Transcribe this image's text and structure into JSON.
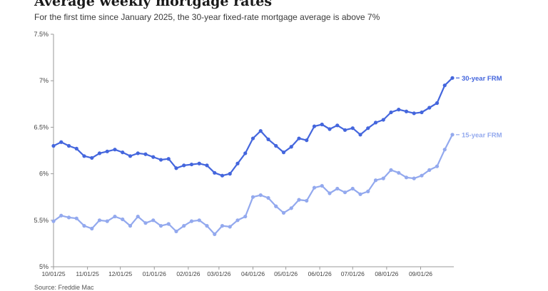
{
  "header": {
    "title": "Average weekly mortgage rates",
    "subtitle": "For the first time since January 2025, the 30-year fixed-rate mortgage average is above 7%"
  },
  "footer": {
    "source": "Source: Freddie Mac"
  },
  "colors": {
    "series_30": "#4466dd",
    "series_15": "#93a9ee",
    "axis": "#9a9a9a",
    "tick_text": "#444444"
  },
  "chart_data": {
    "type": "line",
    "title": "Average weekly mortgage rates",
    "subtitle": "For the first time since January 2025, the 30-year fixed-rate mortgage average is above 7%",
    "xlabel": "",
    "ylabel": "",
    "ylim": [
      5,
      7.5
    ],
    "yticks": [
      5,
      5.5,
      6,
      6.5,
      7,
      7.5
    ],
    "ytick_labels": [
      "5%",
      "5.5%",
      "6%",
      "6.5%",
      "7%",
      "7.5%"
    ],
    "xtick_labels": [
      "10/01/25",
      "11/01/25",
      "12/01/25",
      "01/01/26",
      "02/01/26",
      "03/01/26",
      "04/01/26",
      "05/01/26",
      "06/01/26",
      "07/01/26",
      "08/01/26",
      "09/01/26"
    ],
    "xtick_weeks": [
      0,
      4.43,
      8.71,
      13.14,
      17.57,
      21.57,
      26,
      30.29,
      34.71,
      39,
      43.43,
      47.86
    ],
    "grid": false,
    "legend": "direct labels at line ends",
    "series": [
      {
        "name": "30-year FRM",
        "values": [
          6.3,
          6.34,
          6.3,
          6.27,
          6.19,
          6.17,
          6.22,
          6.24,
          6.26,
          6.23,
          6.19,
          6.22,
          6.21,
          6.18,
          6.15,
          6.16,
          6.06,
          6.09,
          6.1,
          6.11,
          6.09,
          6.01,
          5.98,
          6.0,
          6.11,
          6.22,
          6.38,
          6.46,
          6.37,
          6.3,
          6.23,
          6.29,
          6.38,
          6.36,
          6.51,
          6.53,
          6.48,
          6.52,
          6.47,
          6.49,
          6.42,
          6.49,
          6.55,
          6.58,
          6.66,
          6.69,
          6.67,
          6.65,
          6.66,
          6.71,
          6.76,
          6.95,
          7.03
        ]
      },
      {
        "name": "15-year FRM",
        "values": [
          5.49,
          5.55,
          5.53,
          5.52,
          5.44,
          5.41,
          5.5,
          5.49,
          5.54,
          5.51,
          5.44,
          5.54,
          5.47,
          5.5,
          5.44,
          5.46,
          5.38,
          5.44,
          5.49,
          5.5,
          5.44,
          5.35,
          5.44,
          5.43,
          5.5,
          5.54,
          5.75,
          5.77,
          5.74,
          5.65,
          5.58,
          5.63,
          5.72,
          5.71,
          5.85,
          5.87,
          5.79,
          5.84,
          5.8,
          5.84,
          5.78,
          5.81,
          5.93,
          5.95,
          6.04,
          6.01,
          5.96,
          5.95,
          5.98,
          6.04,
          6.08,
          6.26,
          6.42
        ]
      }
    ]
  }
}
